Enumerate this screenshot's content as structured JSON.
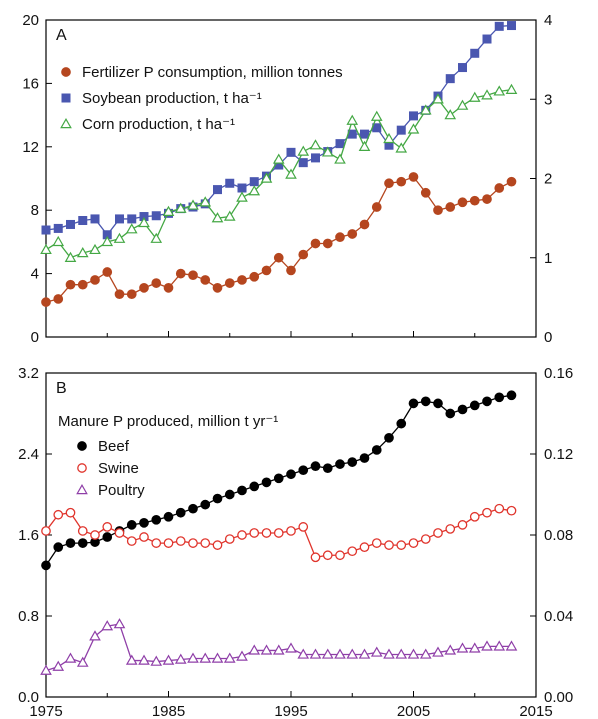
{
  "chart_data": [
    {
      "type": "line",
      "panel_label": "A",
      "x": [
        1975,
        1976,
        1977,
        1978,
        1979,
        1980,
        1981,
        1982,
        1983,
        1984,
        1985,
        1986,
        1987,
        1988,
        1989,
        1990,
        1991,
        1992,
        1993,
        1994,
        1995,
        1996,
        1997,
        1998,
        1999,
        2000,
        2001,
        2002,
        2003,
        2004,
        2005,
        2006,
        2007,
        2008,
        2009,
        2010,
        2011,
        2012,
        2013
      ],
      "xlim": [
        1975,
        2015
      ],
      "ylim": [
        0,
        20
      ],
      "y2lim": [
        0,
        4
      ],
      "yticks": [
        "0",
        "4",
        "8",
        "12",
        "16",
        "20"
      ],
      "y2ticks": [
        "0",
        "1",
        "2",
        "3",
        "4"
      ],
      "grid": false,
      "legend_position": "top-left",
      "series": [
        {
          "name": "Fertilizer P consumption, million tonnes",
          "axis": "left",
          "marker": "circle",
          "color": "#b5461f",
          "values": [
            2.2,
            2.4,
            3.3,
            3.3,
            3.6,
            4.1,
            2.7,
            2.7,
            3.1,
            3.4,
            3.1,
            4.0,
            3.9,
            3.6,
            3.1,
            3.4,
            3.6,
            3.8,
            4.2,
            5.0,
            4.2,
            5.2,
            5.9,
            5.9,
            6.3,
            6.5,
            7.1,
            8.2,
            9.7,
            9.8,
            10.1,
            9.1,
            8.0,
            8.2,
            8.5,
            8.6,
            8.7,
            9.4,
            9.8
          ]
        },
        {
          "name": "Soybean production, t ha⁻¹",
          "axis": "right",
          "marker": "square",
          "color": "#4a57b0",
          "values": [
            1.35,
            1.37,
            1.42,
            1.47,
            1.49,
            1.29,
            1.49,
            1.49,
            1.52,
            1.53,
            1.56,
            1.62,
            1.64,
            1.68,
            1.86,
            1.94,
            1.88,
            1.96,
            2.03,
            2.17,
            2.33,
            2.2,
            2.26,
            2.34,
            2.44,
            2.56,
            2.56,
            2.64,
            2.42,
            2.61,
            2.79,
            2.86,
            3.04,
            3.26,
            3.4,
            3.58,
            3.76,
            3.92,
            3.93
          ]
        },
        {
          "name": "Corn production, t ha⁻¹",
          "axis": "right",
          "marker": "triangle",
          "color": "#44a844",
          "values": [
            1.1,
            1.2,
            1.0,
            1.06,
            1.1,
            1.2,
            1.24,
            1.36,
            1.44,
            1.24,
            1.58,
            1.62,
            1.66,
            1.7,
            1.5,
            1.52,
            1.76,
            1.84,
            2.0,
            2.24,
            2.05,
            2.34,
            2.42,
            2.33,
            2.24,
            2.73,
            2.4,
            2.78,
            2.5,
            2.38,
            2.62,
            2.86,
            3.0,
            2.8,
            2.92,
            3.02,
            3.05,
            3.1,
            3.12
          ]
        }
      ]
    },
    {
      "type": "line",
      "panel_label": "B",
      "x": [
        1975,
        1976,
        1977,
        1978,
        1979,
        1980,
        1981,
        1982,
        1983,
        1984,
        1985,
        1986,
        1987,
        1988,
        1989,
        1990,
        1991,
        1992,
        1993,
        1994,
        1995,
        1996,
        1997,
        1998,
        1999,
        2000,
        2001,
        2002,
        2003,
        2004,
        2005,
        2006,
        2007,
        2008,
        2009,
        2010,
        2011,
        2012,
        2013
      ],
      "xlim": [
        1975,
        2015
      ],
      "xticks": [
        "1975",
        "1985",
        "1995",
        "2005",
        "2015"
      ],
      "ylim": [
        0,
        3.2
      ],
      "y2lim": [
        0,
        0.16
      ],
      "yticks": [
        "0.0",
        "0.8",
        "1.6",
        "2.4",
        "3.2"
      ],
      "y2ticks": [
        "0.00",
        "0.04",
        "0.08",
        "0.12",
        "0.16"
      ],
      "grid": false,
      "legend_title": "Manure P produced, million t yr⁻¹",
      "legend_position": "top-left",
      "series": [
        {
          "name": "Beef",
          "axis": "left",
          "marker": "filled-circle",
          "color": "#000000",
          "values": [
            1.3,
            1.48,
            1.52,
            1.52,
            1.53,
            1.58,
            1.64,
            1.7,
            1.72,
            1.75,
            1.78,
            1.82,
            1.86,
            1.9,
            1.96,
            2.0,
            2.04,
            2.08,
            2.12,
            2.16,
            2.2,
            2.24,
            2.28,
            2.26,
            2.3,
            2.32,
            2.36,
            2.44,
            2.56,
            2.7,
            2.9,
            2.92,
            2.9,
            2.8,
            2.84,
            2.88,
            2.92,
            2.96,
            2.98
          ]
        },
        {
          "name": "Swine",
          "axis": "left",
          "marker": "open-circle",
          "color": "#e0342c",
          "values": [
            1.64,
            1.8,
            1.82,
            1.64,
            1.6,
            1.68,
            1.62,
            1.54,
            1.58,
            1.52,
            1.52,
            1.54,
            1.52,
            1.52,
            1.5,
            1.56,
            1.6,
            1.62,
            1.62,
            1.62,
            1.64,
            1.68,
            1.38,
            1.4,
            1.4,
            1.44,
            1.48,
            1.52,
            1.5,
            1.5,
            1.52,
            1.56,
            1.62,
            1.66,
            1.7,
            1.78,
            1.82,
            1.86,
            1.84
          ]
        },
        {
          "name": "Poultry",
          "axis": "right",
          "marker": "open-triangle",
          "color": "#8f3fa8",
          "values": [
            0.013,
            0.015,
            0.019,
            0.017,
            0.03,
            0.035,
            0.036,
            0.018,
            0.018,
            0.0175,
            0.018,
            0.0185,
            0.019,
            0.019,
            0.019,
            0.019,
            0.02,
            0.023,
            0.023,
            0.023,
            0.024,
            0.021,
            0.021,
            0.021,
            0.021,
            0.021,
            0.021,
            0.022,
            0.021,
            0.021,
            0.021,
            0.021,
            0.022,
            0.023,
            0.024,
            0.024,
            0.025,
            0.025,
            0.025
          ]
        }
      ]
    }
  ]
}
